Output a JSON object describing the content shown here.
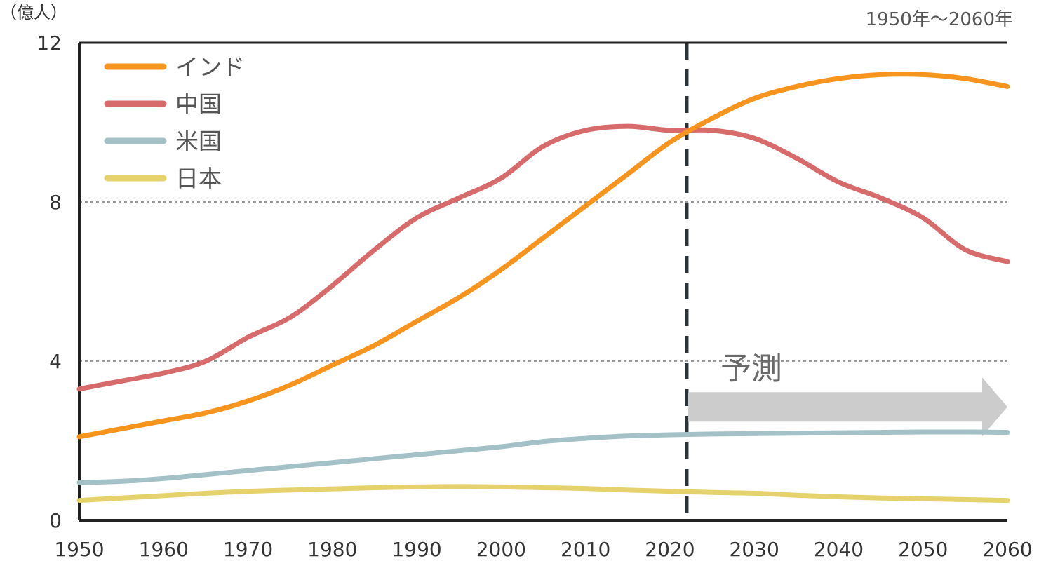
{
  "chart_data": {
    "type": "line",
    "unit_label": "（億人）",
    "range_label": "1950年〜2060年",
    "forecast_label": "予測",
    "forecast_start_year": 2022,
    "xlim": [
      1950,
      2060
    ],
    "ylim": [
      0,
      12
    ],
    "x_ticks": [
      "1950",
      "1960",
      "1970",
      "1980",
      "1990",
      "2000",
      "2010",
      "2020",
      "2030",
      "2040",
      "2050",
      "2060"
    ],
    "y_ticks": [
      "0",
      "4",
      "8",
      "12"
    ],
    "grid": "dashed horizontal at 4 and 8",
    "legend_position": "top-left",
    "x": [
      1950,
      1955,
      1960,
      1965,
      1970,
      1975,
      1980,
      1985,
      1990,
      1995,
      2000,
      2005,
      2010,
      2015,
      2020,
      2025,
      2030,
      2035,
      2040,
      2045,
      2050,
      2055,
      2060
    ],
    "series": [
      {
        "name": "インド",
        "color": "#F7941D",
        "values": [
          2.1,
          2.3,
          2.5,
          2.7,
          3.0,
          3.4,
          3.9,
          4.4,
          5.0,
          5.6,
          6.3,
          7.1,
          7.9,
          8.7,
          9.5,
          10.1,
          10.6,
          10.9,
          11.1,
          11.2,
          11.2,
          11.1,
          10.9
        ]
      },
      {
        "name": "中国",
        "color": "#D76B6B",
        "values": [
          3.3,
          3.5,
          3.7,
          4.0,
          4.6,
          5.1,
          5.9,
          6.8,
          7.6,
          8.1,
          8.6,
          9.4,
          9.8,
          9.9,
          9.8,
          9.8,
          9.6,
          9.1,
          8.5,
          8.1,
          7.6,
          6.8,
          6.5
        ]
      },
      {
        "name": "米国",
        "color": "#A3C1C7",
        "values": [
          0.95,
          0.98,
          1.05,
          1.15,
          1.25,
          1.35,
          1.45,
          1.55,
          1.65,
          1.75,
          1.85,
          1.98,
          2.06,
          2.12,
          2.15,
          2.17,
          2.18,
          2.19,
          2.2,
          2.21,
          2.22,
          2.22,
          2.21
        ]
      },
      {
        "name": "日本",
        "color": "#E5D26C",
        "values": [
          0.5,
          0.56,
          0.62,
          0.68,
          0.73,
          0.76,
          0.79,
          0.82,
          0.84,
          0.85,
          0.84,
          0.82,
          0.8,
          0.76,
          0.73,
          0.7,
          0.68,
          0.63,
          0.59,
          0.56,
          0.54,
          0.52,
          0.5
        ]
      }
    ]
  }
}
